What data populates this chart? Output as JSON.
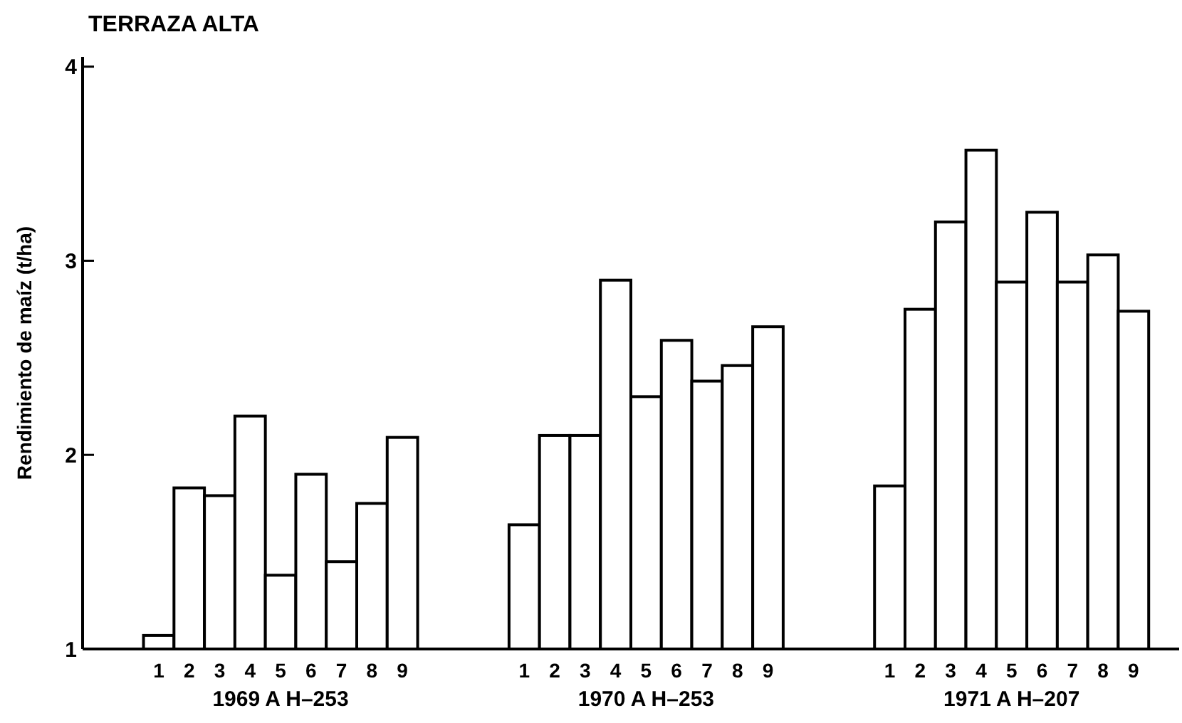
{
  "chart_data": {
    "type": "bar",
    "title": "TERRAZA ALTA",
    "ylabel": "Rendimiento de maíz (t/ha)",
    "categories": [
      null,
      null,
      "1",
      "2",
      "3",
      "4",
      "5",
      "6",
      "7",
      "8",
      "9",
      null,
      null,
      null,
      "1",
      "2",
      "3",
      "4",
      "5",
      "6",
      "7",
      "8",
      "9",
      null,
      null,
      null,
      "1",
      "2",
      "3",
      "4",
      "5",
      "6",
      "7",
      "8",
      "9",
      null
    ],
    "values": [
      null,
      null,
      1.07,
      1.83,
      1.79,
      2.2,
      1.38,
      1.9,
      1.45,
      1.75,
      2.09,
      null,
      null,
      null,
      1.64,
      2.1,
      2.1,
      2.9,
      2.3,
      2.59,
      2.38,
      2.46,
      2.66,
      null,
      null,
      null,
      1.84,
      2.75,
      3.2,
      3.57,
      2.89,
      3.25,
      2.89,
      3.03,
      2.74,
      null
    ],
    "color": "#ffffff",
    "annotations": [
      "1969 A H–253",
      "1970 A H–253",
      "1971 A H–207"
    ],
    "ylim": [
      1,
      4.05
    ],
    "yticks": [
      1,
      2,
      3,
      4
    ],
    "grid": false
  }
}
